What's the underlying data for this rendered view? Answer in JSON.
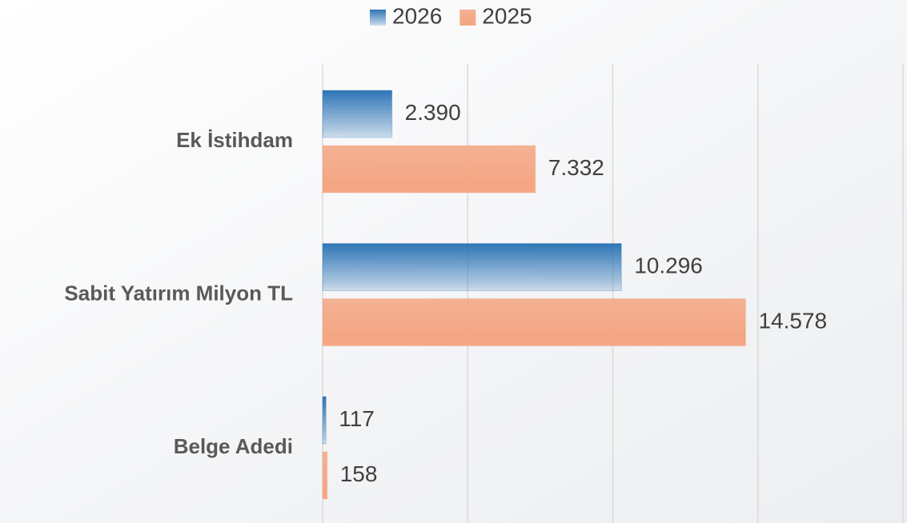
{
  "chart_data": {
    "type": "hbar",
    "categories": [
      "Ek İstihdam",
      "Sabit Yatırım Milyon TL",
      "Belge Adedi"
    ],
    "series": [
      {
        "name": "2026",
        "color": "#2e75b6",
        "values": [
          2390,
          10296,
          117
        ],
        "value_labels": [
          "2.390",
          "10.296",
          "117"
        ]
      },
      {
        "name": "2025",
        "color": "#f4a582",
        "values": [
          7332,
          14578,
          158
        ],
        "value_labels": [
          "7.332",
          "14.578",
          "158"
        ]
      }
    ],
    "xlim": [
      0,
      20000
    ],
    "xticks": [
      0,
      5000,
      10000,
      15000,
      20000
    ],
    "grid": true,
    "legend": "top"
  }
}
